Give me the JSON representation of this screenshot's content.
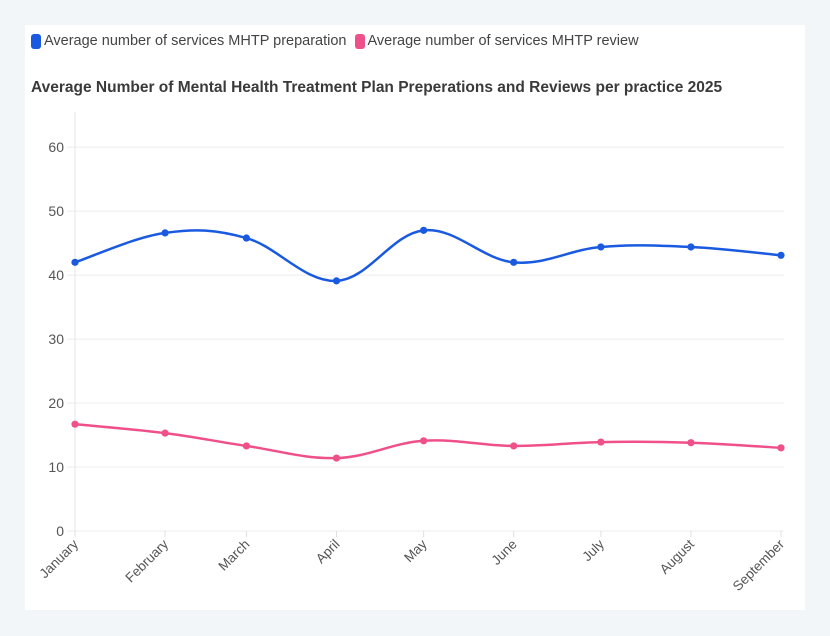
{
  "chart_data": {
    "type": "line",
    "title": "Average Number of Mental Health Treatment Plan Preperations and Reviews per practice 2025",
    "xlabel": "",
    "ylabel": "",
    "categories": [
      "January",
      "February",
      "March",
      "April",
      "May",
      "June",
      "July",
      "August",
      "September"
    ],
    "x_day_of_year": [
      1,
      32,
      60,
      91,
      121,
      152,
      182,
      213,
      244
    ],
    "ylim": [
      0,
      65.5
    ],
    "yticks": [
      0,
      10,
      20,
      30,
      40,
      50,
      60
    ],
    "grid": true,
    "legend_position": "top-left",
    "series": [
      {
        "name": "Average number of services MHTP preparation",
        "color": "#1a5ae0",
        "values": [
          42.0,
          46.6,
          45.8,
          39.1,
          47.0,
          42.0,
          44.4,
          44.4,
          43.1
        ]
      },
      {
        "name": "Average number of services MHTP review",
        "color": "#f0508a",
        "values": [
          16.7,
          15.3,
          13.3,
          11.4,
          14.1,
          13.3,
          13.9,
          13.8,
          13.0
        ]
      }
    ]
  }
}
